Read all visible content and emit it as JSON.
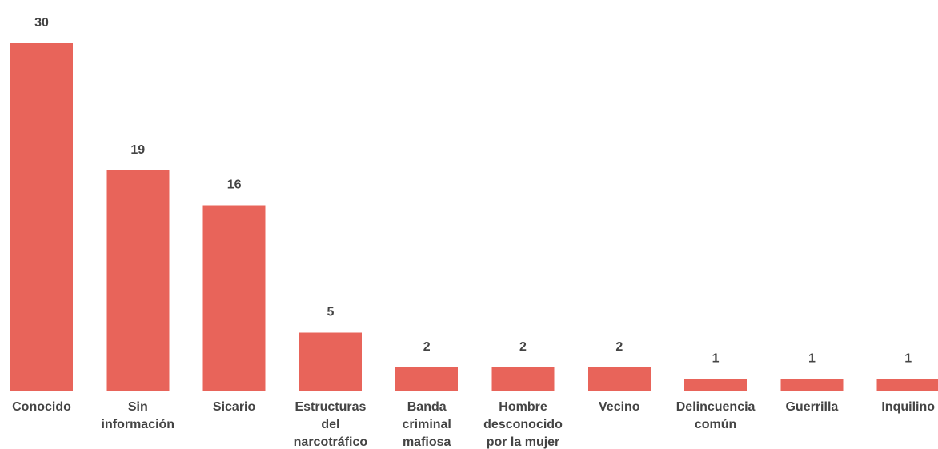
{
  "chart_data": {
    "type": "bar",
    "categories": [
      [
        "Conocido"
      ],
      [
        "Sin",
        "información"
      ],
      [
        "Sicario"
      ],
      [
        "Estructuras",
        "del",
        "narcotráfico"
      ],
      [
        "Banda",
        "criminal",
        "mafiosa"
      ],
      [
        "Hombre",
        "desconocido",
        "por la mujer"
      ],
      [
        "Vecino"
      ],
      [
        "Delincuencia",
        "común"
      ],
      [
        "Guerrilla"
      ],
      [
        "Inquilino"
      ]
    ],
    "values": [
      30,
      19,
      16,
      5,
      2,
      2,
      2,
      1,
      1,
      1
    ],
    "title": "",
    "xlabel": "",
    "ylabel": "",
    "ylim": [
      0,
      30
    ],
    "grid": false,
    "legend": "none",
    "colors": {
      "bar": "#e8645a",
      "text": "#444444"
    }
  }
}
